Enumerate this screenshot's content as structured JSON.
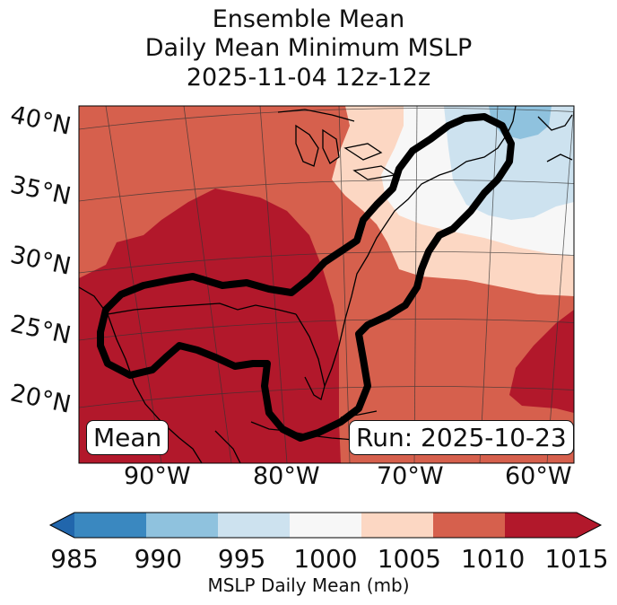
{
  "title": {
    "line1": "Ensemble Mean",
    "line2": "Daily Mean Minimum MSLP",
    "line3": "2025-11-04 12z-12z"
  },
  "map": {
    "lat_labels": [
      "40°N",
      "35°N",
      "30°N",
      "25°N",
      "20°N"
    ],
    "lon_labels": [
      "90°W",
      "80°W",
      "70°W",
      "60°W"
    ],
    "mean_label": "Mean",
    "run_label": "Run: 2025-10-23"
  },
  "colorbar": {
    "ticks": [
      "985",
      "990",
      "995",
      "1000",
      "1005",
      "1010",
      "1015"
    ],
    "label": "MSLP Daily Mean (mb)",
    "colors": [
      "#3a88c0",
      "#8fc2de",
      "#cde2ef",
      "#f7f7f7",
      "#fcd7c3",
      "#d6604d",
      "#b2182b"
    ],
    "under_color": "#2166ac",
    "over_color": "#b2182b"
  }
}
